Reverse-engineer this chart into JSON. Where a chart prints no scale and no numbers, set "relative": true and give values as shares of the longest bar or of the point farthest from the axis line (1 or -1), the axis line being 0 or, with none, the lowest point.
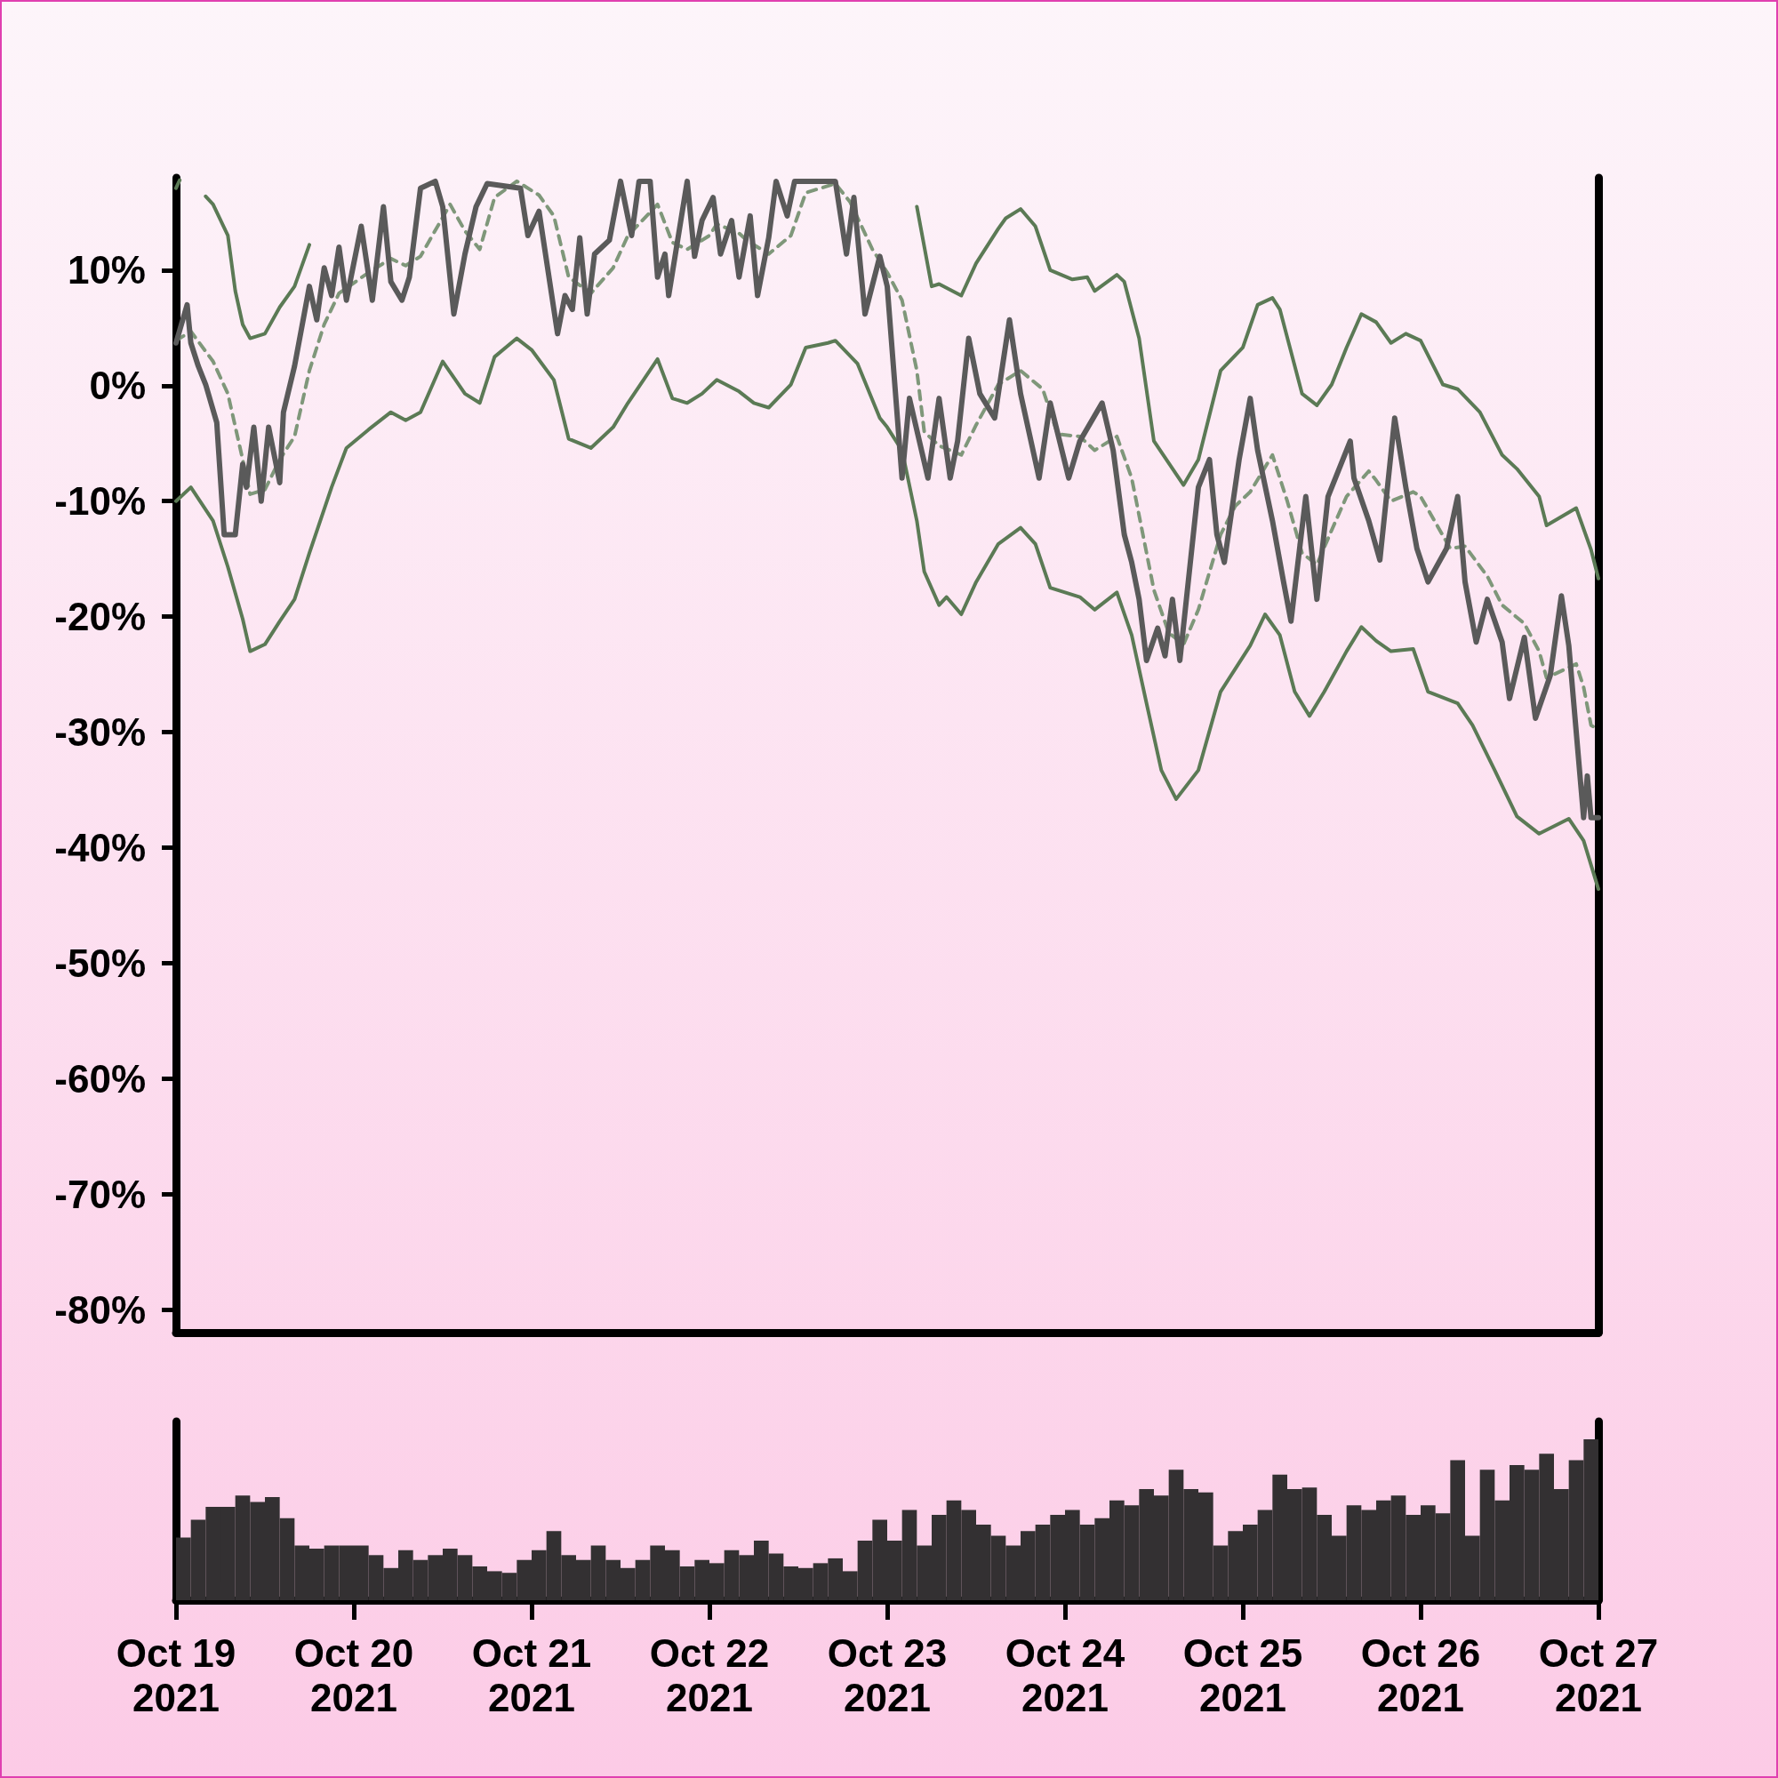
{
  "chart_data": [
    {
      "type": "line",
      "marker": "none",
      "tick_labels": "y",
      "xlim": [
        "2021-10-19",
        "2021-10-27"
      ],
      "ylim": [
        -82,
        18
      ],
      "yticks": [
        {
          "value": -80,
          "label": "-80%"
        },
        {
          "value": -70,
          "label": "-70%"
        },
        {
          "value": -60,
          "label": "-60%"
        },
        {
          "value": -50,
          "label": "-50%"
        },
        {
          "value": -40,
          "label": "-40%"
        },
        {
          "value": -30,
          "label": "-30%"
        },
        {
          "value": -20,
          "label": "-20%"
        },
        {
          "value": -10,
          "label": "-10%"
        },
        {
          "value": 0,
          "label": "0%"
        },
        {
          "value": 10,
          "label": "10%"
        }
      ],
      "series": [
        {
          "color": "#5a5a5a",
          "line_style": "solid",
          "x": [
            "2021-10-19T00:00",
            "2021-10-19T01:30",
            "2021-10-19T02:00",
            "2021-10-19T03:00",
            "2021-10-19T04:00",
            "2021-10-19T05:30",
            "2021-10-19T06:30",
            "2021-10-19T08:00",
            "2021-10-19T09:00",
            "2021-10-19T09:30",
            "2021-10-19T10:30",
            "2021-10-19T11:30",
            "2021-10-19T12:30",
            "2021-10-19T14:00",
            "2021-10-19T14:30",
            "2021-10-19T16:00",
            "2021-10-19T18:00",
            "2021-10-19T19:00",
            "2021-10-19T20:00",
            "2021-10-19T21:00",
            "2021-10-19T22:00",
            "2021-10-19T23:00",
            "2021-10-20T01:00",
            "2021-10-20T02:30",
            "2021-10-20T04:00",
            "2021-10-20T05:00",
            "2021-10-20T06:30",
            "2021-10-20T07:30",
            "2021-10-20T09:00",
            "2021-10-20T11:00",
            "2021-10-20T12:00",
            "2021-10-20T13:30",
            "2021-10-20T15:00",
            "2021-10-20T16:30",
            "2021-10-20T18:00",
            "2021-10-20T22:30",
            "2021-10-20T23:30",
            "2021-10-21T01:00",
            "2021-10-21T03:30",
            "2021-10-21T04:30",
            "2021-10-21T05:30",
            "2021-10-21T06:30",
            "2021-10-21T07:30",
            "2021-10-21T08:30",
            "2021-10-21T10:30",
            "2021-10-21T12:00",
            "2021-10-21T13:30",
            "2021-10-21T14:30",
            "2021-10-21T16:00",
            "2021-10-21T17:00",
            "2021-10-21T18:00",
            "2021-10-21T18:30",
            "2021-10-21T21:00",
            "2021-10-21T22:00",
            "2021-10-21T23:00",
            "2021-10-22T00:30",
            "2021-10-22T01:30",
            "2021-10-22T03:00",
            "2021-10-22T04:00",
            "2021-10-22T05:30",
            "2021-10-22T06:30",
            "2021-10-22T08:00",
            "2021-10-22T09:00",
            "2021-10-22T10:30",
            "2021-10-22T11:30",
            "2021-10-22T17:00",
            "2021-10-22T18:30",
            "2021-10-22T19:30",
            "2021-10-22T21:00",
            "2021-10-22T23:00",
            "2021-10-23T00:00",
            "2021-10-23T02:00",
            "2021-10-23T03:00",
            "2021-10-23T05:30",
            "2021-10-23T07:00",
            "2021-10-23T08:30",
            "2021-10-23T09:30",
            "2021-10-23T11:00",
            "2021-10-23T12:30",
            "2021-10-23T14:30",
            "2021-10-23T16:30",
            "2021-10-23T18:00",
            "2021-10-23T20:30",
            "2021-10-23T22:00",
            "2021-10-24T00:30",
            "2021-10-24T02:00",
            "2021-10-24T05:00",
            "2021-10-24T06:30",
            "2021-10-24T08:00",
            "2021-10-24T09:00",
            "2021-10-24T10:00",
            "2021-10-24T11:00",
            "2021-10-24T12:30",
            "2021-10-24T13:30",
            "2021-10-24T14:30",
            "2021-10-24T15:30",
            "2021-10-24T18:00",
            "2021-10-24T19:30",
            "2021-10-24T20:30",
            "2021-10-24T21:30",
            "2021-10-24T23:30",
            "2021-10-25T01:00",
            "2021-10-25T02:00",
            "2021-10-25T04:00",
            "2021-10-25T05:30",
            "2021-10-25T06:30",
            "2021-10-25T08:30",
            "2021-10-25T10:00",
            "2021-10-25T11:30",
            "2021-10-25T14:30",
            "2021-10-25T15:00",
            "2021-10-25T17:00",
            "2021-10-25T18:30",
            "2021-10-25T20:30",
            "2021-10-25T22:00",
            "2021-10-25T23:30",
            "2021-10-26T01:00",
            "2021-10-26T03:30",
            "2021-10-26T05:00",
            "2021-10-26T06:00",
            "2021-10-26T07:30",
            "2021-10-26T09:00",
            "2021-10-26T11:00",
            "2021-10-26T12:00",
            "2021-10-26T14:00",
            "2021-10-26T15:30",
            "2021-10-26T17:30",
            "2021-10-26T19:00",
            "2021-10-26T20:00",
            "2021-10-26T22:00",
            "2021-10-26T22:30",
            "2021-10-26T23:00",
            "2021-10-27T00:00"
          ],
          "values": [
            3.7,
            7.0,
            3.7,
            1.7,
            0.1,
            -3.2,
            -12.9,
            -12.9,
            -6.8,
            -8.8,
            -3.6,
            -10.0,
            -3.6,
            -8.4,
            -2.3,
            1.7,
            8.6,
            5.7,
            10.2,
            7.8,
            12.0,
            7.4,
            13.8,
            7.4,
            15.5,
            9.0,
            7.4,
            9.4,
            17.1,
            17.7,
            15.5,
            6.2,
            11.4,
            15.5,
            17.5,
            17.1,
            13.0,
            15.1,
            4.5,
            7.8,
            6.6,
            12.8,
            6.2,
            11.4,
            12.6,
            17.7,
            13.0,
            17.7,
            17.7,
            9.4,
            11.4,
            7.8,
            17.7,
            11.2,
            14.3,
            16.3,
            11.4,
            14.3,
            9.4,
            14.7,
            7.8,
            12.8,
            17.7,
            14.7,
            17.7,
            17.7,
            11.4,
            16.3,
            6.2,
            11.2,
            8.6,
            -8.0,
            -1.1,
            -8.0,
            -1.1,
            -8.0,
            -4.8,
            4.1,
            -0.7,
            -2.8,
            5.7,
            -0.7,
            -8.0,
            -1.5,
            -8.0,
            -4.8,
            -1.5,
            -5.6,
            -12.9,
            -15.3,
            -18.5,
            -23.8,
            -21.0,
            -23.4,
            -18.5,
            -23.8,
            -8.8,
            -6.4,
            -12.9,
            -15.3,
            -6.4,
            -1.1,
            -5.6,
            -11.7,
            -17.0,
            -20.4,
            -9.6,
            -18.5,
            -9.6,
            -4.8,
            -8.0,
            -11.7,
            -15.1,
            -2.8,
            -8.8,
            -14.1,
            -17.0,
            -14.1,
            -9.6,
            -17.0,
            -22.2,
            -18.5,
            -22.2,
            -27.1,
            -21.8,
            -28.8,
            -25.1,
            -18.2,
            -22.5,
            -37.4,
            -33.8,
            -37.4,
            -37.4
          ]
        },
        {
          "color": "#5b7a55",
          "line_style": "solid",
          "x": [
            "2021-10-19T00:00",
            "2021-10-19T00:30",
            "2021-10-19T01:00",
            "2021-10-19T03:00",
            "2021-10-19T04:00",
            "2021-10-19T05:00",
            "2021-10-19T07:00",
            "2021-10-19T08:00",
            "2021-10-19T09:00",
            "2021-10-19T10:00",
            "2021-10-19T12:00",
            "2021-10-19T14:00",
            "2021-10-19T16:00",
            "2021-10-19T18:00",
            "2021-10-19T20:00",
            "2021-10-23T02:00",
            "2021-10-23T04:00",
            "2021-10-23T06:00",
            "2021-10-23T07:00",
            "2021-10-23T10:00",
            "2021-10-23T12:00",
            "2021-10-23T15:00",
            "2021-10-23T16:00",
            "2021-10-23T18:00",
            "2021-10-23T20:00",
            "2021-10-23T22:00",
            "2021-10-24T01:00",
            "2021-10-24T03:00",
            "2021-10-24T04:00",
            "2021-10-24T07:00",
            "2021-10-24T08:00",
            "2021-10-24T10:00",
            "2021-10-24T12:00",
            "2021-10-24T16:00",
            "2021-10-24T18:00",
            "2021-10-24T21:00",
            "2021-10-25T00:00",
            "2021-10-25T02:00",
            "2021-10-25T04:00",
            "2021-10-25T05:00",
            "2021-10-25T08:00",
            "2021-10-25T10:00",
            "2021-10-25T12:00",
            "2021-10-25T14:00",
            "2021-10-25T16:00",
            "2021-10-25T18:00",
            "2021-10-25T20:00",
            "2021-10-25T22:00",
            "2021-10-26T00:00",
            "2021-10-26T03:00",
            "2021-10-26T05:00",
            "2021-10-26T08:00",
            "2021-10-26T11:00",
            "2021-10-26T13:00",
            "2021-10-26T16:00",
            "2021-10-26T17:00",
            "2021-10-26T21:00",
            "2021-10-26T23:00",
            "2021-10-27T00:00"
          ],
          "values": [
            17.1,
            17.8,
            null,
            null,
            16.4,
            15.7,
            13.0,
            8.2,
            5.3,
            4.1,
            4.5,
            6.8,
            8.6,
            12.2,
            null,
            null,
            15.5,
            8.6,
            8.8,
            7.8,
            10.6,
            13.6,
            14.5,
            15.3,
            13.8,
            10.0,
            9.2,
            9.4,
            8.2,
            9.6,
            9.0,
            4.1,
            -4.8,
            -8.6,
            -6.4,
            1.3,
            3.3,
            7.0,
            7.6,
            6.6,
            -0.7,
            -1.7,
            0.1,
            3.3,
            6.2,
            5.5,
            3.7,
            4.5,
            3.9,
            0.1,
            -0.3,
            -2.3,
            -6.0,
            -7.2,
            -9.6,
            -12.1,
            -10.6,
            -14.2,
            -16.7
          ]
        },
        {
          "color": "#5b7a55",
          "line_style": "solid",
          "x": [
            "2021-10-19T00:00",
            "2021-10-19T02:00",
            "2021-10-19T05:00",
            "2021-10-19T07:00",
            "2021-10-19T09:00",
            "2021-10-19T10:00",
            "2021-10-19T12:00",
            "2021-10-19T14:00",
            "2021-10-19T16:00",
            "2021-10-19T18:00",
            "2021-10-19T21:00",
            "2021-10-19T23:00",
            "2021-10-20T02:00",
            "2021-10-20T05:00",
            "2021-10-20T07:00",
            "2021-10-20T09:00",
            "2021-10-20T12:00",
            "2021-10-20T15:00",
            "2021-10-20T17:00",
            "2021-10-20T19:00",
            "2021-10-20T22:00",
            "2021-10-21T00:00",
            "2021-10-21T03:00",
            "2021-10-21T05:00",
            "2021-10-21T08:00",
            "2021-10-21T11:00",
            "2021-10-21T13:00",
            "2021-10-21T17:00",
            "2021-10-21T19:00",
            "2021-10-21T21:00",
            "2021-10-21T23:00",
            "2021-10-22T01:00",
            "2021-10-22T04:00",
            "2021-10-22T06:00",
            "2021-10-22T08:00",
            "2021-10-22T11:00",
            "2021-10-22T13:00",
            "2021-10-22T16:00",
            "2021-10-22T17:00",
            "2021-10-22T20:00",
            "2021-10-22T23:00",
            "2021-10-23T00:00",
            "2021-10-23T02:00",
            "2021-10-23T04:00",
            "2021-10-23T05:00",
            "2021-10-23T07:00",
            "2021-10-23T08:00",
            "2021-10-23T10:00",
            "2021-10-23T12:00",
            "2021-10-23T15:00",
            "2021-10-23T18:00",
            "2021-10-23T20:00",
            "2021-10-23T22:00",
            "2021-10-24T02:00",
            "2021-10-24T04:00",
            "2021-10-24T07:00",
            "2021-10-24T09:00",
            "2021-10-24T11:00",
            "2021-10-24T13:00",
            "2021-10-24T15:00",
            "2021-10-24T18:00",
            "2021-10-24T21:00",
            "2021-10-24T23:00",
            "2021-10-25T01:00",
            "2021-10-25T03:00",
            "2021-10-25T05:00",
            "2021-10-25T07:00",
            "2021-10-25T09:00",
            "2021-10-25T11:00",
            "2021-10-25T14:00",
            "2021-10-25T16:00",
            "2021-10-25T18:00",
            "2021-10-25T20:00",
            "2021-10-25T23:00",
            "2021-10-26T01:00",
            "2021-10-26T05:00",
            "2021-10-26T07:00",
            "2021-10-26T10:00",
            "2021-10-26T13:00",
            "2021-10-26T16:00",
            "2021-10-26T20:00",
            "2021-10-26T22:00",
            "2021-10-27T00:00"
          ],
          "values": [
            -10.0,
            -8.8,
            -11.7,
            -15.7,
            -20.2,
            -23.0,
            -22.4,
            -20.4,
            -18.5,
            -14.5,
            -8.8,
            -5.4,
            -3.8,
            -2.3,
            -3.0,
            -2.3,
            2.1,
            -0.7,
            -1.5,
            2.5,
            4.1,
            3.1,
            0.5,
            -4.6,
            -5.4,
            -3.6,
            -1.5,
            2.3,
            -1.1,
            -1.5,
            -0.7,
            0.5,
            -0.5,
            -1.5,
            -1.9,
            0.1,
            3.3,
            3.7,
            3.9,
            1.9,
            -2.8,
            -3.6,
            -5.6,
            -11.7,
            -16.1,
            -19.0,
            -18.3,
            -19.8,
            -17.0,
            -13.7,
            -12.3,
            -13.7,
            -17.5,
            -18.3,
            -19.4,
            -17.9,
            -21.6,
            -27.5,
            -33.3,
            -35.8,
            -33.3,
            -26.5,
            -24.5,
            -22.5,
            -19.8,
            -21.6,
            -26.5,
            -28.6,
            -26.5,
            -23.0,
            -20.9,
            -22.1,
            -23.0,
            -22.8,
            -26.5,
            -27.5,
            -29.4,
            -33.3,
            -37.3,
            -38.8,
            -37.5,
            -39.4,
            -43.6
          ]
        },
        {
          "color": "#7f977a",
          "line_style": "dashed",
          "x": [
            "2021-10-19T00:00",
            "2021-10-19T02:00",
            "2021-10-19T05:00",
            "2021-10-19T07:00",
            "2021-10-19T09:00",
            "2021-10-19T10:00",
            "2021-10-19T12:00",
            "2021-10-19T14:00",
            "2021-10-19T16:00",
            "2021-10-19T18:00",
            "2021-10-19T20:00",
            "2021-10-19T22:00",
            "2021-10-20T02:00",
            "2021-10-20T05:00",
            "2021-10-20T07:00",
            "2021-10-20T09:00",
            "2021-10-20T13:00",
            "2021-10-20T15:00",
            "2021-10-20T17:00",
            "2021-10-20T19:00",
            "2021-10-20T22:00",
            "2021-10-21T01:00",
            "2021-10-21T03:00",
            "2021-10-21T05:00",
            "2021-10-21T08:00",
            "2021-10-21T11:00",
            "2021-10-21T13:00",
            "2021-10-21T17:00",
            "2021-10-21T19:00",
            "2021-10-21T21:00",
            "2021-10-22T00:00",
            "2021-10-22T01:00",
            "2021-10-22T04:00",
            "2021-10-22T05:00",
            "2021-10-22T08:00",
            "2021-10-22T11:00",
            "2021-10-22T13:00",
            "2021-10-22T17:00",
            "2021-10-22T19:00",
            "2021-10-22T22:00",
            "2021-10-23T00:00",
            "2021-10-23T02:00",
            "2021-10-23T04:00",
            "2021-10-23T05:00",
            "2021-10-23T07:00",
            "2021-10-23T10:00",
            "2021-10-23T12:00",
            "2021-10-23T15:00",
            "2021-10-23T18:00",
            "2021-10-23T21:00",
            "2021-10-23T23:00",
            "2021-10-24T02:00",
            "2021-10-24T04:00",
            "2021-10-24T07:00",
            "2021-10-24T09:00",
            "2021-10-24T12:00",
            "2021-10-24T14:00",
            "2021-10-24T16:00",
            "2021-10-24T18:00",
            "2021-10-24T21:00",
            "2021-10-24T23:00",
            "2021-10-25T01:00",
            "2021-10-25T04:00",
            "2021-10-25T06:00",
            "2021-10-25T08:00",
            "2021-10-25T10:00",
            "2021-10-25T12:00",
            "2021-10-25T14:00",
            "2021-10-25T17:00",
            "2021-10-25T18:00",
            "2021-10-25T20:00",
            "2021-10-25T23:00",
            "2021-10-26T00:00",
            "2021-10-26T04:00",
            "2021-10-26T06:00",
            "2021-10-26T09:00",
            "2021-10-26T11:00",
            "2021-10-26T14:00",
            "2021-10-26T16:00",
            "2021-10-26T17:00",
            "2021-10-26T21:00",
            "2021-10-26T22:00",
            "2021-10-26T23:00",
            "2021-10-27T00:00"
          ],
          "values": [
            3.9,
            4.7,
            2.1,
            -0.7,
            -6.4,
            -9.4,
            -9.0,
            -6.4,
            -4.4,
            1.3,
            5.3,
            8.0,
            9.8,
            11.0,
            10.4,
            11.2,
            15.7,
            13.4,
            11.8,
            16.3,
            17.7,
            16.5,
            14.7,
            9.4,
            8.0,
            10.2,
            13.0,
            15.7,
            12.4,
            11.8,
            13.0,
            14.0,
            13.2,
            12.6,
            11.4,
            13.0,
            16.7,
            17.5,
            15.9,
            11.8,
            9.8,
            7.4,
            1.3,
            -4.0,
            -5.2,
            -6.0,
            -3.4,
            0.1,
            1.3,
            -0.3,
            -4.2,
            -4.4,
            -5.6,
            -4.4,
            -8.0,
            -17.7,
            -21.4,
            -22.4,
            -19.4,
            -12.9,
            -10.4,
            -9.2,
            -6.0,
            -10.0,
            -14.5,
            -15.5,
            -12.5,
            -9.6,
            -7.4,
            -8.2,
            -10.0,
            -9.2,
            -9.6,
            -14.1,
            -13.9,
            -16.5,
            -19.0,
            -20.6,
            -23.0,
            -25.3,
            -24.1,
            -26.1,
            -29.4,
            -29.8
          ]
        }
      ]
    },
    {
      "type": "bar",
      "relative": true,
      "tick_labels": "x",
      "color": "#333032",
      "xlim": [
        "2021-10-19",
        "2021-10-27"
      ],
      "xticks": [
        {
          "value": "2021-10-19",
          "label": "Oct 19\n2021"
        },
        {
          "value": "2021-10-20",
          "label": "Oct 20\n2021"
        },
        {
          "value": "2021-10-21",
          "label": "Oct 21\n2021"
        },
        {
          "value": "2021-10-22",
          "label": "Oct 22\n2021"
        },
        {
          "value": "2021-10-23",
          "label": "Oct 23\n2021"
        },
        {
          "value": "2021-10-24",
          "label": "Oct 24\n2021"
        },
        {
          "value": "2021-10-25",
          "label": "Oct 25\n2021"
        },
        {
          "value": "2021-10-26",
          "label": "Oct 26\n2021"
        },
        {
          "value": "2021-10-27",
          "label": "Oct 27\n2021"
        }
      ],
      "x": [
        "2021-10-19T01:00",
        "2021-10-19T03:00",
        "2021-10-19T05:00",
        "2021-10-19T07:00",
        "2021-10-19T09:00",
        "2021-10-19T11:00",
        "2021-10-19T13:00",
        "2021-10-19T15:00",
        "2021-10-19T17:00",
        "2021-10-19T19:00",
        "2021-10-19T21:00",
        "2021-10-19T23:00",
        "2021-10-20T01:00",
        "2021-10-20T03:00",
        "2021-10-20T05:00",
        "2021-10-20T07:00",
        "2021-10-20T09:00",
        "2021-10-20T11:00",
        "2021-10-20T13:00",
        "2021-10-20T15:00",
        "2021-10-20T17:00",
        "2021-10-20T19:00",
        "2021-10-20T21:00",
        "2021-10-20T23:00",
        "2021-10-21T01:00",
        "2021-10-21T03:00",
        "2021-10-21T05:00",
        "2021-10-21T07:00",
        "2021-10-21T09:00",
        "2021-10-21T11:00",
        "2021-10-21T13:00",
        "2021-10-21T15:00",
        "2021-10-21T17:00",
        "2021-10-21T19:00",
        "2021-10-21T21:00",
        "2021-10-21T23:00",
        "2021-10-22T01:00",
        "2021-10-22T03:00",
        "2021-10-22T05:00",
        "2021-10-22T07:00",
        "2021-10-22T09:00",
        "2021-10-22T11:00",
        "2021-10-22T13:00",
        "2021-10-22T15:00",
        "2021-10-22T17:00",
        "2021-10-22T19:00",
        "2021-10-22T21:00",
        "2021-10-22T23:00",
        "2021-10-23T01:00",
        "2021-10-23T03:00",
        "2021-10-23T05:00",
        "2021-10-23T07:00",
        "2021-10-23T09:00",
        "2021-10-23T11:00",
        "2021-10-23T13:00",
        "2021-10-23T15:00",
        "2021-10-23T17:00",
        "2021-10-23T19:00",
        "2021-10-23T21:00",
        "2021-10-23T23:00",
        "2021-10-24T01:00",
        "2021-10-24T03:00",
        "2021-10-24T05:00",
        "2021-10-24T07:00",
        "2021-10-24T09:00",
        "2021-10-24T11:00",
        "2021-10-24T13:00",
        "2021-10-24T15:00",
        "2021-10-24T17:00",
        "2021-10-24T19:00",
        "2021-10-24T21:00",
        "2021-10-24T23:00",
        "2021-10-25T01:00",
        "2021-10-25T03:00",
        "2021-10-25T05:00",
        "2021-10-25T07:00",
        "2021-10-25T09:00",
        "2021-10-25T11:00",
        "2021-10-25T13:00",
        "2021-10-25T15:00",
        "2021-10-25T17:00",
        "2021-10-25T19:00",
        "2021-10-25T21:00",
        "2021-10-25T23:00",
        "2021-10-26T01:00",
        "2021-10-26T03:00",
        "2021-10-26T05:00",
        "2021-10-26T07:00",
        "2021-10-26T09:00",
        "2021-10-26T11:00",
        "2021-10-26T13:00",
        "2021-10-26T15:00",
        "2021-10-26T17:00",
        "2021-10-26T19:00",
        "2021-10-26T21:00",
        "2021-10-26T23:00"
      ],
      "values": [
        0.39,
        0.5,
        0.58,
        0.58,
        0.65,
        0.61,
        0.64,
        0.51,
        0.34,
        0.32,
        0.34,
        0.34,
        0.34,
        0.28,
        0.2,
        0.31,
        0.25,
        0.28,
        0.32,
        0.28,
        0.21,
        0.18,
        0.17,
        0.25,
        0.31,
        0.43,
        0.28,
        0.25,
        0.34,
        0.25,
        0.2,
        0.25,
        0.34,
        0.31,
        0.21,
        0.25,
        0.23,
        0.31,
        0.28,
        0.37,
        0.29,
        0.21,
        0.2,
        0.23,
        0.26,
        0.18,
        0.37,
        0.5,
        0.37,
        0.56,
        0.34,
        0.53,
        0.62,
        0.56,
        0.47,
        0.4,
        0.34,
        0.43,
        0.47,
        0.53,
        0.56,
        0.47,
        0.51,
        0.62,
        0.59,
        0.69,
        0.65,
        0.81,
        0.69,
        0.67,
        0.34,
        0.43,
        0.47,
        0.56,
        0.78,
        0.69,
        0.7,
        0.53,
        0.4,
        0.59,
        0.56,
        0.62,
        0.65,
        0.53,
        0.59,
        0.54,
        0.87,
        0.4,
        0.81,
        0.62,
        0.84,
        0.81,
        0.91,
        0.69,
        0.87,
        1
      ]
    }
  ]
}
